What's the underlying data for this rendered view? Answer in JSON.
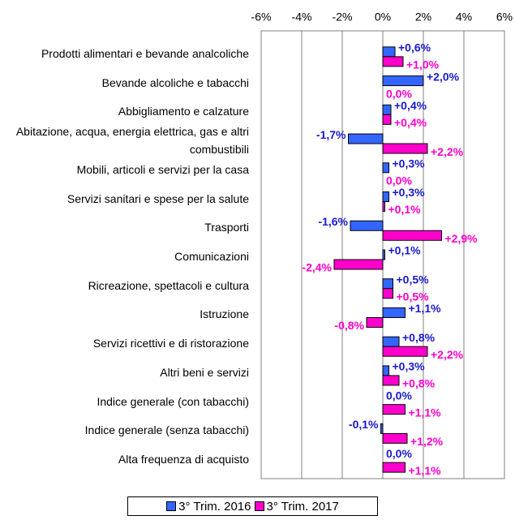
{
  "chart_data": {
    "type": "hbar",
    "categories": [
      "Prodotti alimentari e bevande analcoliche",
      "Bevande alcoliche e tabacchi",
      "Abbigliamento e calzature",
      "Abitazione, acqua, energia elettrica, gas e altri combustibili",
      "Mobili, articoli e servizi per la casa",
      "Servizi sanitari e spese per la salute",
      "Trasporti",
      "Comunicazioni",
      "Ricreazione, spettacoli e cultura",
      "Istruzione",
      "Servizi ricettivi e di ristorazione",
      "Altri beni e servizi",
      "Indice generale (con tabacchi)",
      "Indice generale (senza tabacchi)",
      "Alta frequenza di acquisto"
    ],
    "series": [
      {
        "name": "3° Trim. 2016",
        "color": "#3366ff",
        "label_color": "#1a1acc",
        "values": [
          0.6,
          2.0,
          0.4,
          -1.7,
          0.3,
          0.3,
          -1.6,
          0.1,
          0.5,
          1.1,
          0.8,
          0.3,
          0.0,
          -0.1,
          0.0
        ],
        "value_labels": [
          "+0,6%",
          "+2,0%",
          "+0,4%",
          "-1,7%",
          "+0,3%",
          "+0,3%",
          "-1,6%",
          "+0,1%",
          "+0,5%",
          "+1,1%",
          "+0,8%",
          "+0,3%",
          "0,0%",
          "-0,1%",
          "0,0%"
        ]
      },
      {
        "name": "3° Trim. 2017",
        "color": "#ff00cc",
        "label_color": "#ff00cc",
        "values": [
          1.0,
          0.0,
          0.4,
          2.2,
          0.0,
          0.1,
          2.9,
          -2.4,
          0.5,
          -0.8,
          2.2,
          0.8,
          1.1,
          1.2,
          1.1
        ],
        "value_labels": [
          "+1,0%",
          "0,0%",
          "+0,4%",
          "+2,2%",
          "0,0%",
          "+0,1%",
          "+2,9%",
          "-2,4%",
          "+0,5%",
          "-0,8%",
          "+2,2%",
          "+0,8%",
          "+1,1%",
          "+1,2%",
          "+1,1%"
        ]
      }
    ],
    "xlim": [
      -6,
      6
    ],
    "xticks": [
      {
        "value": -6,
        "label": "-6%"
      },
      {
        "value": -4,
        "label": "-4%"
      },
      {
        "value": -2,
        "label": "-2%"
      },
      {
        "value": 0,
        "label": "0%"
      },
      {
        "value": 2,
        "label": "2%"
      },
      {
        "value": 4,
        "label": "4%"
      },
      {
        "value": 6,
        "label": "6%"
      }
    ],
    "grid": true,
    "legend": "bottom"
  }
}
